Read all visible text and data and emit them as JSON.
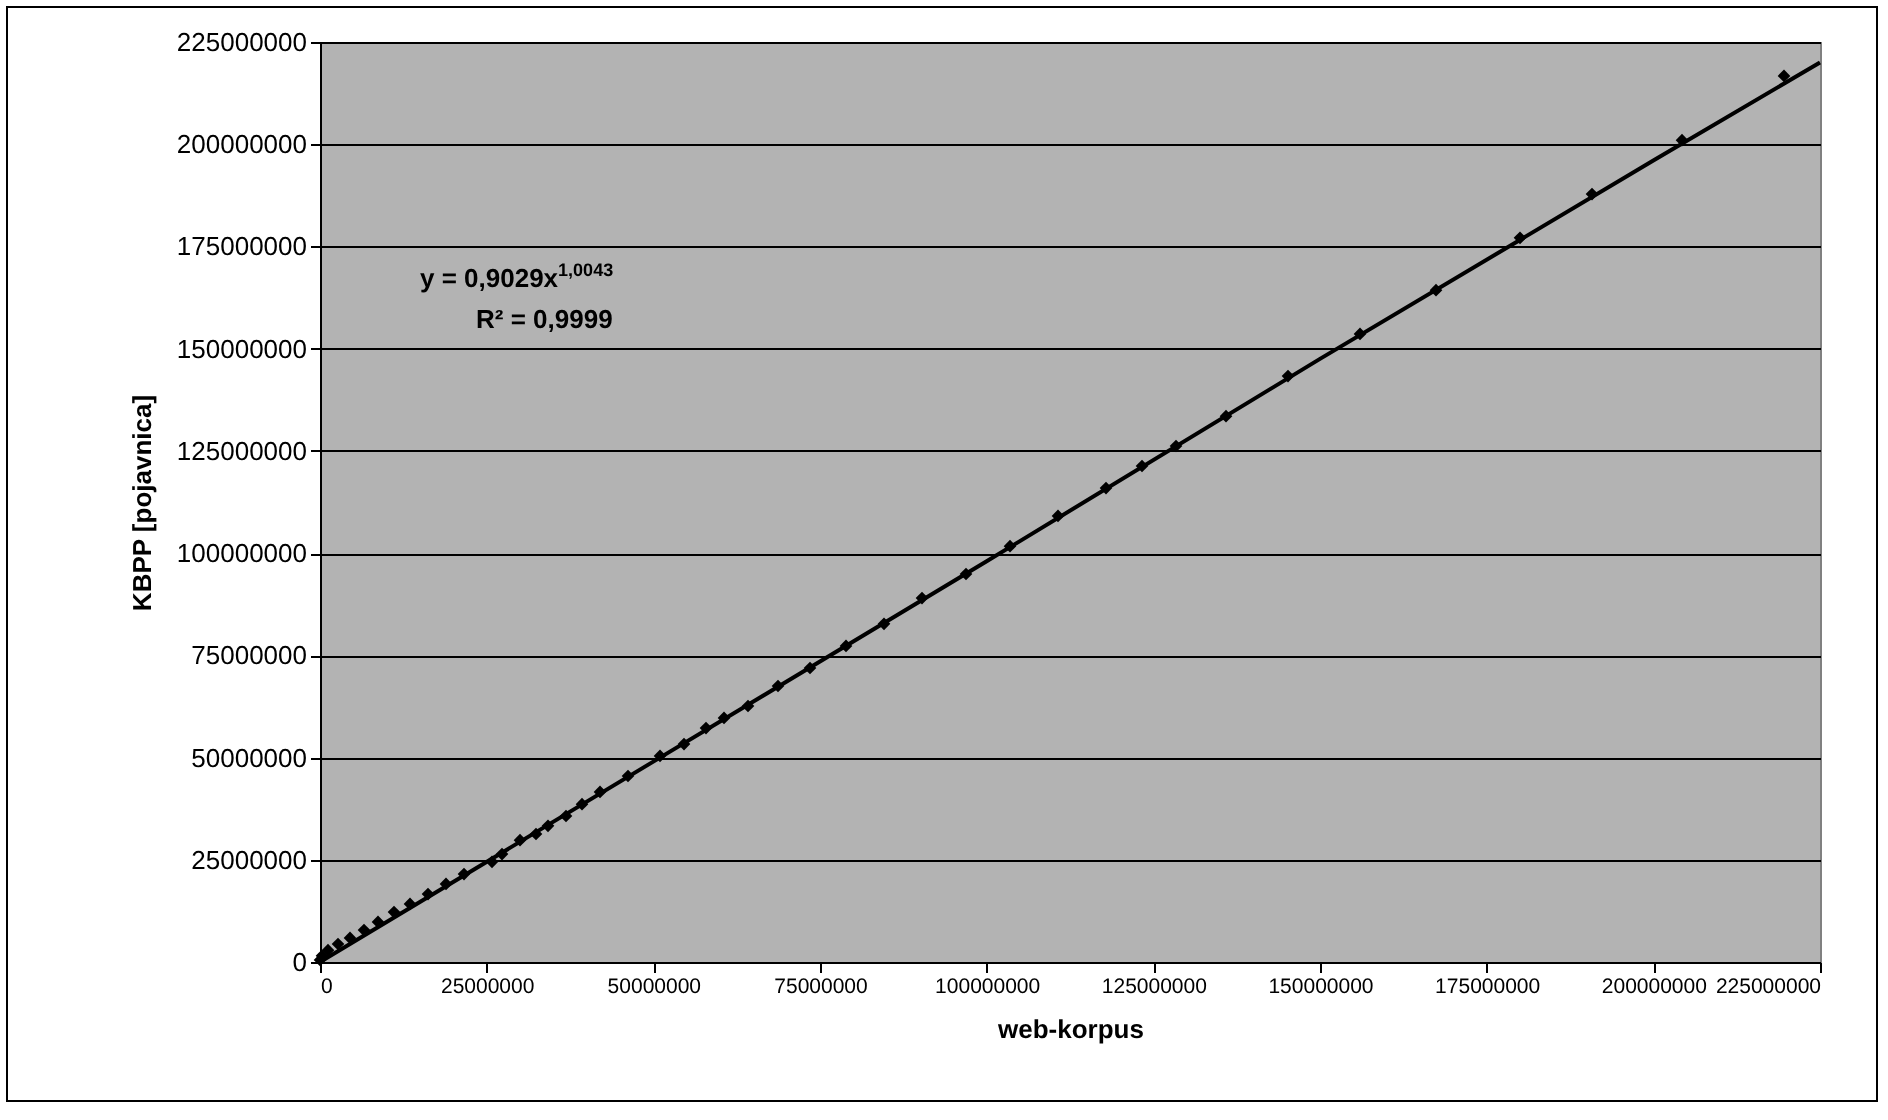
{
  "chart_data": {
    "type": "scatter",
    "xlabel": "web-korpus",
    "ylabel": "KBPP [pojavnica]",
    "xlim": [
      0,
      225000000
    ],
    "xticks": [
      0,
      25000000,
      50000000,
      75000000,
      100000000,
      125000000,
      150000000,
      175000000,
      200000000,
      225000000
    ],
    "ylim": [
      0,
      225000000
    ],
    "yticks": [
      0,
      25000000,
      50000000,
      75000000,
      100000000,
      125000000,
      150000000,
      175000000,
      200000000,
      225000000
    ],
    "grid": "y",
    "marker": "diamond",
    "annotations": [
      "y = 0,9029x$^{1,0043}$",
      "R² = 0,9999"
    ],
    "series": [
      {
        "color": "#000000",
        "x": [
          0,
          300000,
          1200000,
          2700000,
          4500000,
          6600000,
          8700000,
          11100000,
          13500000,
          16200000,
          18900000,
          21600000,
          25800000,
          27300000,
          30000000,
          32400000,
          34200000,
          36900000,
          39300000,
          42000000,
          46200000,
          51000000,
          54600000,
          57900000,
          60600000,
          64200000,
          68700000,
          73500000,
          78900000,
          84600000,
          90300000,
          96900000,
          103500000,
          110700000,
          117900000,
          123300000,
          128400000,
          135900000,
          145200000,
          156000000,
          167400000,
          180000000,
          190800000,
          204300000,
          219600000
        ],
        "values": [
          500000,
          1500000,
          2900000,
          4400000,
          5900000,
          7800000,
          9800000,
          12200000,
          14200000,
          16600000,
          19100000,
          21500000,
          24500000,
          26400000,
          29800000,
          31300000,
          33300000,
          35700000,
          38600000,
          41600000,
          45500000,
          50400000,
          53300000,
          57200000,
          59700000,
          62600000,
          67500000,
          71900000,
          77300000,
          82700000,
          89000000,
          94900000,
          101700000,
          109100000,
          115900000,
          121300000,
          126200000,
          133500000,
          143300000,
          153600000,
          164300000,
          177100000,
          187800000,
          201000000,
          216700000
        ]
      },
      {
        "type": "line",
        "color": "#000000",
        "line_style": "solid",
        "marker": "none",
        "x": [
          0,
          50000000,
          100000000,
          150000000,
          200000000,
          225000000
        ],
        "values": [
          0,
          49000000,
          98000000,
          147500000,
          196000000,
          220000000
        ]
      }
    ]
  }
}
